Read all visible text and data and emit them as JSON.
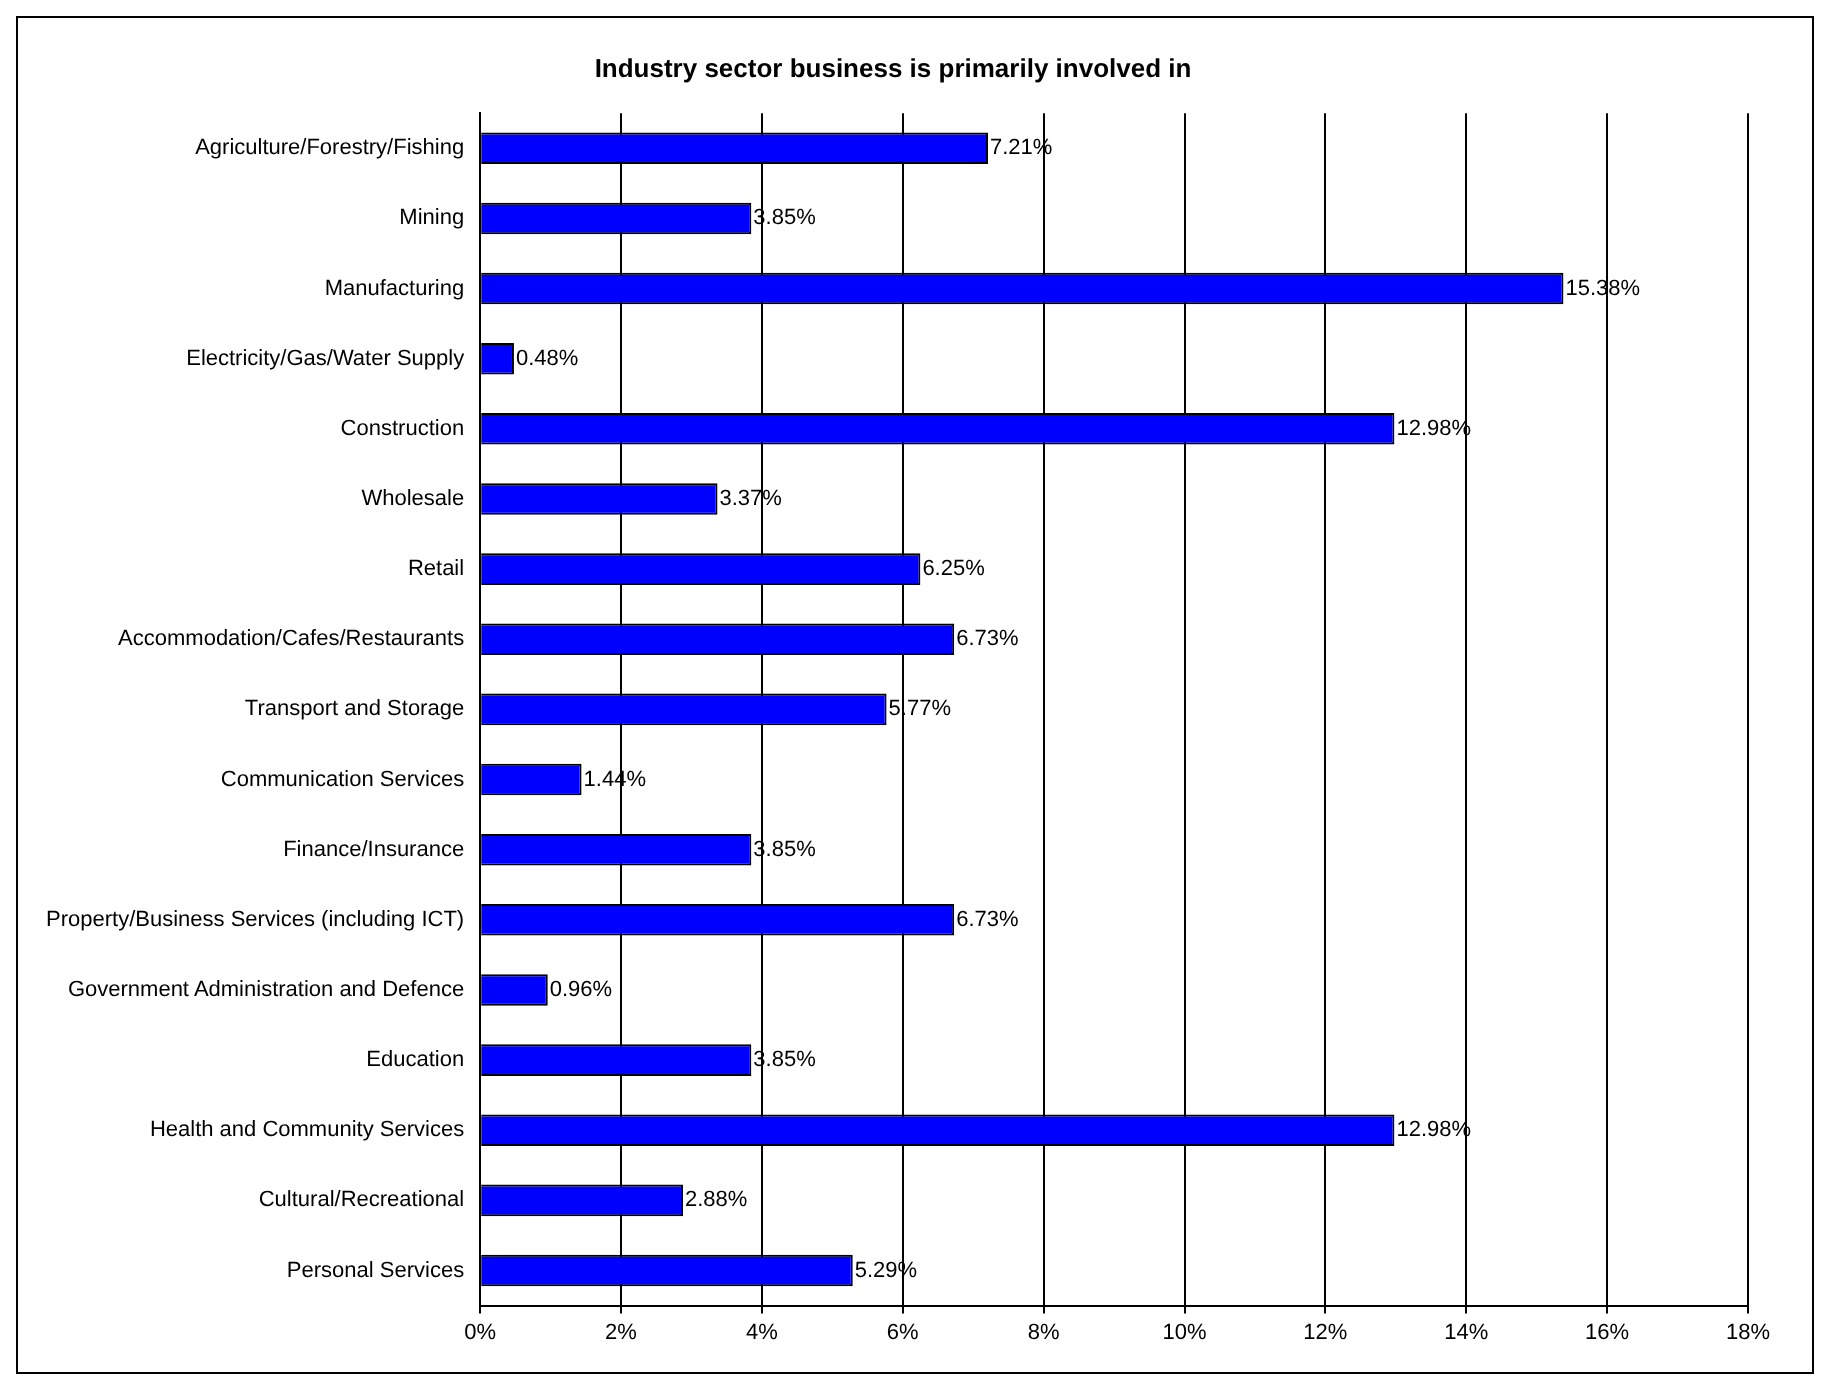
{
  "chart_data": {
    "type": "bar",
    "orientation": "horizontal",
    "title": "Industry sector business is primarily involved in",
    "categories": [
      "Agriculture/Forestry/Fishing",
      "Mining",
      "Manufacturing",
      "Electricity/Gas/Water Supply",
      "Construction",
      "Wholesale",
      "Retail",
      "Accommodation/Cafes/Restaurants",
      "Transport and Storage",
      "Communication Services",
      "Finance/Insurance",
      "Property/Business Services (including ICT)",
      "Government Administration and Defence",
      "Education",
      "Health and Community Services",
      "Cultural/Recreational",
      "Personal Services"
    ],
    "values": [
      7.21,
      3.85,
      15.38,
      0.48,
      12.98,
      3.37,
      6.25,
      6.73,
      5.77,
      1.44,
      3.85,
      6.73,
      0.96,
      3.85,
      12.98,
      2.88,
      5.29
    ],
    "value_labels": [
      "7.21%",
      "3.85%",
      "15.38%",
      "0.48%",
      "12.98%",
      "3.37%",
      "6.25%",
      "6.73%",
      "5.77%",
      "1.44%",
      "3.85%",
      "6.73%",
      "0.96%",
      "3.85%",
      "12.98%",
      "2.88%",
      "5.29%"
    ],
    "color": "#0000ff",
    "xlim": [
      0,
      18
    ],
    "xticks": [
      {
        "value": 0,
        "label": "0%"
      },
      {
        "value": 2,
        "label": "2%"
      },
      {
        "value": 4,
        "label": "4%"
      },
      {
        "value": 6,
        "label": "6%"
      },
      {
        "value": 8,
        "label": "8%"
      },
      {
        "value": 10,
        "label": "10%"
      },
      {
        "value": 12,
        "label": "12%"
      },
      {
        "value": 14,
        "label": "14%"
      },
      {
        "value": 16,
        "label": "16%"
      },
      {
        "value": 18,
        "label": "18%"
      }
    ],
    "grid": "x",
    "legend": false
  }
}
